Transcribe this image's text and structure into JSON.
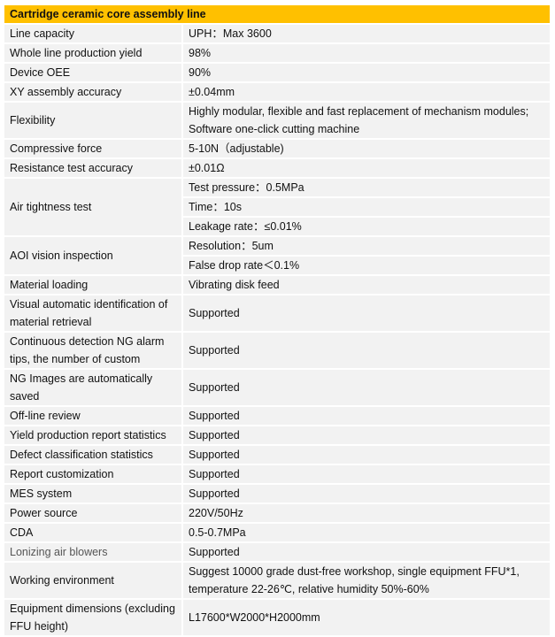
{
  "title": "Cartridge ceramic core assembly line",
  "rows": [
    {
      "label": "Line capacity",
      "values": [
        "UPH：Max 3600"
      ]
    },
    {
      "label": "Whole line production yield",
      "values": [
        "98%"
      ]
    },
    {
      "label": "Device OEE",
      "values": [
        "90%"
      ]
    },
    {
      "label": "XY assembly accuracy",
      "values": [
        "±0.04mm"
      ]
    },
    {
      "label": "Flexibility",
      "values": [
        "Highly modular, flexible and fast replacement of mechanism modules; Software one-click cutting machine"
      ]
    },
    {
      "label": "Compressive force",
      "values": [
        "5-10N（adjustable)"
      ]
    },
    {
      "label": "Resistance test accuracy",
      "values": [
        "±0.01Ω"
      ]
    },
    {
      "label": "Air tightness test",
      "values": [
        "Test pressure：0.5MPa",
        "Time：10s",
        "Leakage rate：≤0.01%"
      ]
    },
    {
      "label": "AOI vision inspection",
      "values": [
        "Resolution：5um",
        "False drop rate＜0.1%"
      ]
    },
    {
      "label": "Material loading",
      "values": [
        "Vibrating disk feed"
      ]
    },
    {
      "label": "Visual automatic identification of material retrieval",
      "values": [
        "Supported"
      ]
    },
    {
      "label": "Continuous detection NG alarm tips, the number of custom",
      "values": [
        "Supported"
      ]
    },
    {
      "label": "NG Images are automatically saved",
      "values": [
        "Supported"
      ]
    },
    {
      "label": "Off-line review",
      "values": [
        "Supported"
      ]
    },
    {
      "label": "Yield production report statistics",
      "values": [
        "Supported"
      ]
    },
    {
      "label": "Defect classification statistics",
      "values": [
        "Supported"
      ]
    },
    {
      "label": "Report customization",
      "values": [
        "Supported"
      ]
    },
    {
      "label": "MES system",
      "values": [
        "Supported"
      ]
    },
    {
      "label": "Power source",
      "values": [
        "220V/50Hz"
      ]
    },
    {
      "label": "CDA",
      "values": [
        "0.5-0.7MPa"
      ]
    },
    {
      "label": "Lonizing air blowers",
      "values": [
        "Supported"
      ]
    },
    {
      "label": "Working environment",
      "values": [
        "Suggest 10000 grade dust-free workshop, single equipment FFU*1, temperature 22-26℃, relative humidity 50%-60%"
      ]
    },
    {
      "label": "Equipment dimensions (excluding FFU height)",
      "values": [
        "L17600*W2000*H2000mm"
      ]
    }
  ]
}
